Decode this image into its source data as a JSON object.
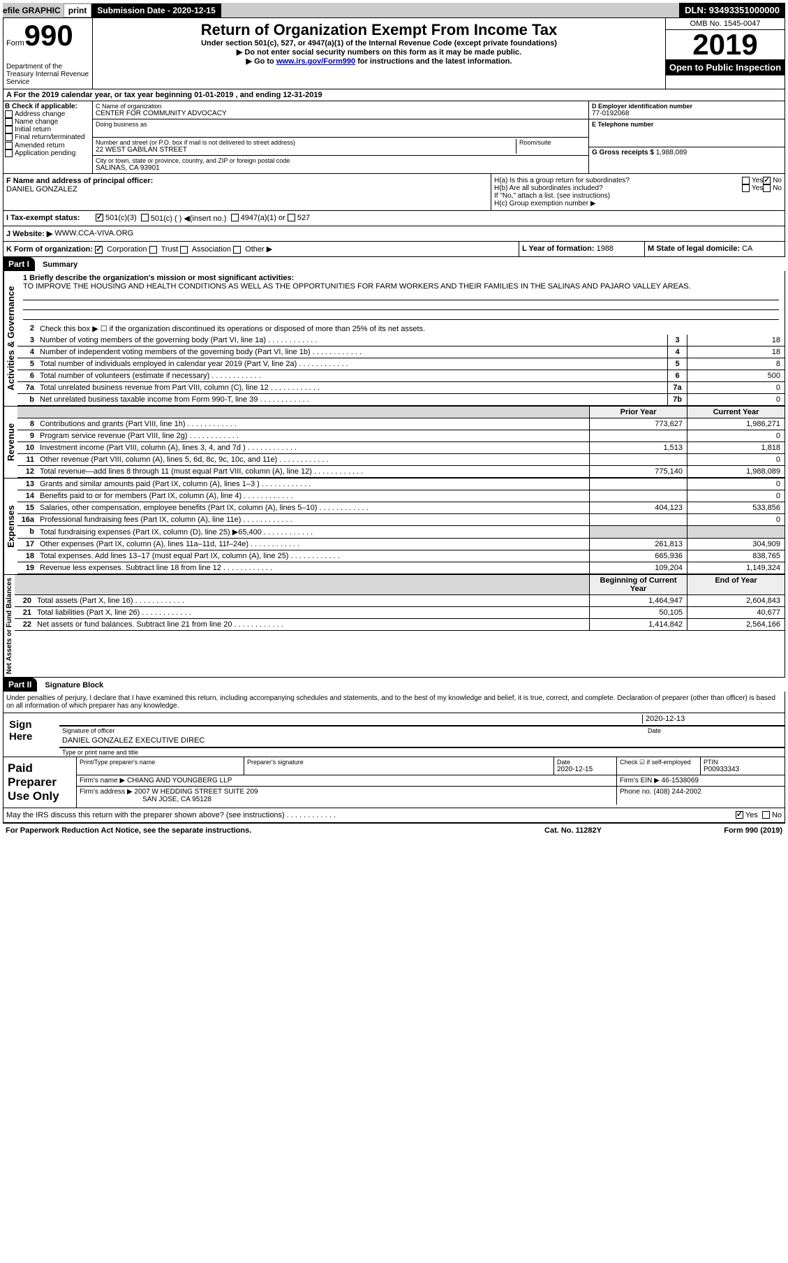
{
  "topbar": {
    "efile": "efile GRAPHIC",
    "print": "print",
    "subdate_label": "Submission Date - 2020-12-15",
    "dln": "DLN: 93493351000000"
  },
  "header": {
    "form_label": "Form",
    "form_num": "990",
    "dept": "Department of the Treasury\nInternal Revenue Service",
    "title": "Return of Organization Exempt From Income Tax",
    "sub1": "Under section 501(c), 527, or 4947(a)(1) of the Internal Revenue Code (except private foundations)",
    "sub2": "▶ Do not enter social security numbers on this form as it may be made public.",
    "sub3_pre": "▶ Go to ",
    "sub3_link": "www.irs.gov/Form990",
    "sub3_post": " for instructions and the latest information.",
    "omb": "OMB No. 1545-0047",
    "year": "2019",
    "open": "Open to Public\nInspection"
  },
  "lineA": "A For the 2019 calendar year, or tax year beginning 01-01-2019   , and ending 12-31-2019",
  "boxB": {
    "label": "B Check if applicable:",
    "items": [
      "Address change",
      "Name change",
      "Initial return",
      "Final return/terminated",
      "Amended return",
      "Application pending"
    ]
  },
  "boxC": {
    "name_label": "C Name of organization",
    "name": "CENTER FOR COMMUNITY ADVOCACY",
    "dba_label": "Doing business as",
    "addr_label": "Number and street (or P.O. box if mail is not delivered to street address)",
    "room_label": "Room/suite",
    "addr": "22 WEST GABILAN STREET",
    "city_label": "City or town, state or province, country, and ZIP or foreign postal code",
    "city": "SALINAS, CA  93901"
  },
  "boxD": {
    "label": "D Employer identification number",
    "val": "77-0192068"
  },
  "boxE": {
    "label": "E Telephone number",
    "val": ""
  },
  "boxG": {
    "label": "G Gross receipts $",
    "val": "1,988,089"
  },
  "boxF": {
    "label": "F  Name and address of principal officer:",
    "val": "DANIEL GONZALEZ"
  },
  "boxH": {
    "ha": "H(a)  Is this a group return for subordinates?",
    "hb": "H(b)  Are all subordinates included?",
    "hb_note": "If \"No,\" attach a list. (see instructions)",
    "hc": "H(c)  Group exemption number ▶",
    "yes": "Yes",
    "no": "No"
  },
  "boxI": {
    "label": "I  Tax-exempt status:",
    "o1": "501(c)(3)",
    "o2": "501(c) (  ) ◀(insert no.)",
    "o3": "4947(a)(1) or",
    "o4": "527"
  },
  "boxJ": {
    "label": "J  Website: ▶",
    "val": "WWW.CCA-VIVA.ORG"
  },
  "boxK": {
    "label": "K Form of organization:",
    "o1": "Corporation",
    "o2": "Trust",
    "o3": "Association",
    "o4": "Other ▶"
  },
  "boxL": {
    "label": "L Year of formation:",
    "val": "1988"
  },
  "boxM": {
    "label": "M State of legal domicile:",
    "val": "CA"
  },
  "part1": {
    "label": "Part I",
    "title": "Summary"
  },
  "summary": {
    "sec1_label": "Activities & Governance",
    "l1_label": "1  Briefly describe the organization's mission or most significant activities:",
    "l1_text": "TO IMPROVE THE HOUSING AND HEALTH CONDITIONS AS WELL AS THE OPPORTUNITIES FOR FARM WORKERS AND THEIR FAMILIES IN THE SALINAS AND PAJARO VALLEY AREAS.",
    "l2": "Check this box ▶ ☐ if the organization discontinued its operations or disposed of more than 25% of its net assets.",
    "lines_gov": [
      {
        "n": "3",
        "t": "Number of voting members of the governing body (Part VI, line 1a)",
        "b": "3",
        "v": "18"
      },
      {
        "n": "4",
        "t": "Number of independent voting members of the governing body (Part VI, line 1b)",
        "b": "4",
        "v": "18"
      },
      {
        "n": "5",
        "t": "Total number of individuals employed in calendar year 2019 (Part V, line 2a)",
        "b": "5",
        "v": "8"
      },
      {
        "n": "6",
        "t": "Total number of volunteers (estimate if necessary)",
        "b": "6",
        "v": "500"
      },
      {
        "n": "7a",
        "t": "Total unrelated business revenue from Part VIII, column (C), line 12",
        "b": "7a",
        "v": "0"
      },
      {
        "n": "b",
        "t": "Net unrelated business taxable income from Form 990-T, line 39",
        "b": "7b",
        "v": "0"
      }
    ],
    "sec2_label": "Revenue",
    "hdr_prior": "Prior Year",
    "hdr_curr": "Current Year",
    "lines_rev": [
      {
        "n": "8",
        "t": "Contributions and grants (Part VIII, line 1h)",
        "p": "773,627",
        "c": "1,986,271"
      },
      {
        "n": "9",
        "t": "Program service revenue (Part VIII, line 2g)",
        "p": "",
        "c": "0"
      },
      {
        "n": "10",
        "t": "Investment income (Part VIII, column (A), lines 3, 4, and 7d )",
        "p": "1,513",
        "c": "1,818"
      },
      {
        "n": "11",
        "t": "Other revenue (Part VIII, column (A), lines 5, 6d, 8c, 9c, 10c, and 11e)",
        "p": "",
        "c": "0"
      },
      {
        "n": "12",
        "t": "Total revenue—add lines 8 through 11 (must equal Part VIII, column (A), line 12)",
        "p": "775,140",
        "c": "1,988,089"
      }
    ],
    "sec3_label": "Expenses",
    "lines_exp": [
      {
        "n": "13",
        "t": "Grants and similar amounts paid (Part IX, column (A), lines 1–3 )",
        "p": "",
        "c": "0"
      },
      {
        "n": "14",
        "t": "Benefits paid to or for members (Part IX, column (A), line 4)",
        "p": "",
        "c": "0"
      },
      {
        "n": "15",
        "t": "Salaries, other compensation, employee benefits (Part IX, column (A), lines 5–10)",
        "p": "404,123",
        "c": "533,856"
      },
      {
        "n": "16a",
        "t": "Professional fundraising fees (Part IX, column (A), line 11e)",
        "p": "",
        "c": "0"
      },
      {
        "n": "b",
        "t": "Total fundraising expenses (Part IX, column (D), line 25) ▶65,400",
        "p": "grey",
        "c": "grey"
      },
      {
        "n": "17",
        "t": "Other expenses (Part IX, column (A), lines 11a–11d, 11f–24e)",
        "p": "261,813",
        "c": "304,909"
      },
      {
        "n": "18",
        "t": "Total expenses. Add lines 13–17 (must equal Part IX, column (A), line 25)",
        "p": "665,936",
        "c": "838,765"
      },
      {
        "n": "19",
        "t": "Revenue less expenses. Subtract line 18 from line 12",
        "p": "109,204",
        "c": "1,149,324"
      }
    ],
    "sec4_label": "Net Assets or\nFund Balances",
    "hdr_begin": "Beginning of Current Year",
    "hdr_end": "End of Year",
    "lines_net": [
      {
        "n": "20",
        "t": "Total assets (Part X, line 16)",
        "p": "1,464,947",
        "c": "2,604,843"
      },
      {
        "n": "21",
        "t": "Total liabilities (Part X, line 26)",
        "p": "50,105",
        "c": "40,677"
      },
      {
        "n": "22",
        "t": "Net assets or fund balances. Subtract line 21 from line 20",
        "p": "1,414,842",
        "c": "2,564,166"
      }
    ]
  },
  "part2": {
    "label": "Part II",
    "title": "Signature Block"
  },
  "sig": {
    "declaration": "Under penalties of perjury, I declare that I have examined this return, including accompanying schedules and statements, and to the best of my knowledge and belief, it is true, correct, and complete. Declaration of preparer (other than officer) is based on all information of which preparer has any knowledge.",
    "sign_here": "Sign Here",
    "sig_officer": "Signature of officer",
    "date_label": "Date",
    "date": "2020-12-13",
    "name": "DANIEL GONZALEZ  EXECUTIVE DIREC",
    "type_label": "Type or print name and title"
  },
  "paid": {
    "label": "Paid Preparer Use Only",
    "print_label": "Print/Type preparer's name",
    "prep_sig_label": "Preparer's signature",
    "date_label": "Date",
    "date": "2020-12-15",
    "check_label": "Check ☑ if self-employed",
    "ptin_label": "PTIN",
    "ptin": "P00933343",
    "firm_name_label": "Firm's name   ▶",
    "firm_name": "CHIANG AND YOUNGBERG LLP",
    "firm_ein_label": "Firm's EIN ▶",
    "firm_ein": "46-1538069",
    "firm_addr_label": "Firm's address ▶",
    "firm_addr": "2007 W HEDDING STREET SUITE 209",
    "firm_city": "SAN JOSE, CA  95128",
    "phone_label": "Phone no.",
    "phone": "(408) 244-2002",
    "discuss": "May the IRS discuss this return with the preparer shown above? (see instructions)",
    "yes": "Yes",
    "no": "No"
  },
  "footer": {
    "left": "For Paperwork Reduction Act Notice, see the separate instructions.",
    "center": "Cat. No. 11282Y",
    "right": "Form 990 (2019)"
  }
}
